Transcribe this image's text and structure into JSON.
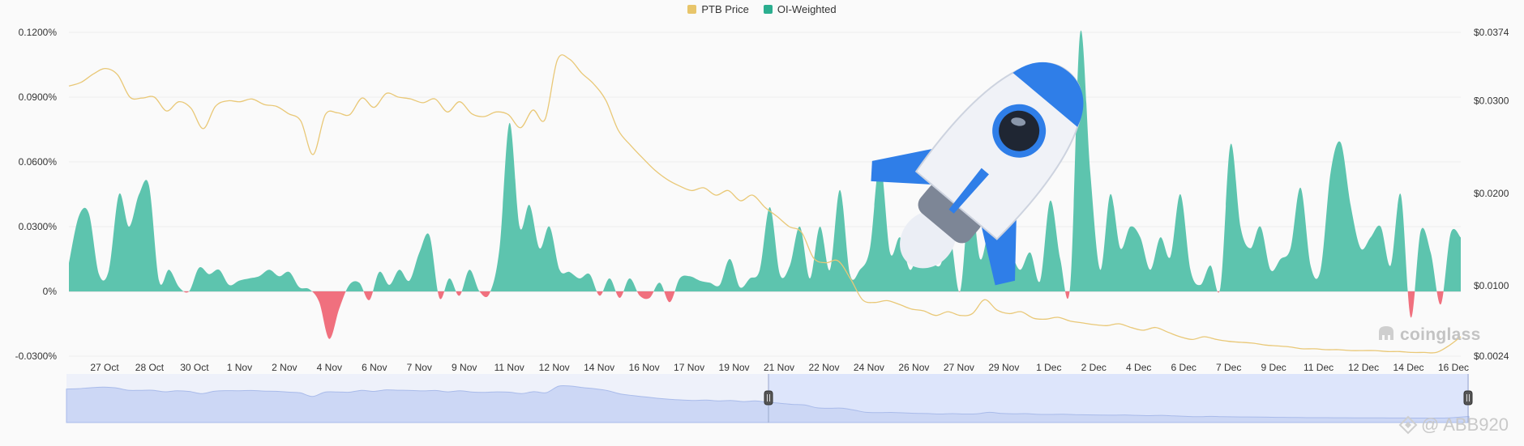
{
  "legend": {
    "items": [
      {
        "label": "PTB Price",
        "color": "#E8C56A"
      },
      {
        "label": "OI-Weighted",
        "color": "#2BAE8F"
      }
    ]
  },
  "watermark": {
    "brand": "coinglass",
    "author": "@ ABB920"
  },
  "colors": {
    "positive": "#5DC4AE",
    "negative": "#F0707E",
    "price": "#E9C877",
    "navigator_fill": "#CCD7F5",
    "navigator_line": "#A9BBEA"
  },
  "chart_data": {
    "type": "area",
    "left_axis": {
      "ticks": [
        "0.1200%",
        "0.0900%",
        "0.0600%",
        "0.0300%",
        "0%",
        "-0.0300%"
      ],
      "values": [
        0.12,
        0.09,
        0.06,
        0.03,
        0,
        -0.03
      ],
      "range": [
        -0.03,
        0.12
      ]
    },
    "right_axis": {
      "ticks": [
        "$0.0374",
        "$0.0300",
        "$0.0200",
        "$0.0100",
        "$0.0024"
      ],
      "values": [
        0.0374,
        0.03,
        0.02,
        0.01,
        0.0024
      ],
      "range": [
        0.0024,
        0.0374
      ]
    },
    "x_labels": [
      "27 Oct",
      "28 Oct",
      "30 Oct",
      "1 Nov",
      "2 Nov",
      "4 Nov",
      "6 Nov",
      "7 Nov",
      "9 Nov",
      "11 Nov",
      "12 Nov",
      "14 Nov",
      "16 Nov",
      "17 Nov",
      "19 Nov",
      "21 Nov",
      "22 Nov",
      "24 Nov",
      "26 Nov",
      "27 Nov",
      "29 Nov",
      "1 Dec",
      "2 Dec",
      "4 Dec",
      "6 Dec",
      "7 Dec",
      "9 Dec",
      "11 Dec",
      "12 Dec",
      "14 Dec",
      "16 Dec"
    ],
    "series": [
      {
        "name": "OI-Weighted",
        "axis": "left",
        "values": [
          0.013,
          0.035,
          0.036,
          0.008,
          0.01,
          0.045,
          0.03,
          0.045,
          0.049,
          0.005,
          0.01,
          0.002,
          0,
          0.011,
          0.008,
          0.01,
          0.003,
          0.005,
          0.006,
          0.007,
          0.01,
          0.007,
          0.009,
          0.002,
          0.001,
          -0.005,
          -0.022,
          -0.008,
          0.003,
          0.004,
          -0.004,
          0.009,
          0.003,
          0.01,
          0.005,
          0.018,
          0.026,
          -0.003,
          0.006,
          -0.002,
          0.01,
          0,
          -0.001,
          0.02,
          0.078,
          0.03,
          0.04,
          0.02,
          0.03,
          0.01,
          0.009,
          0.006,
          0.008,
          -0.002,
          0.006,
          -0.003,
          0.006,
          -0.002,
          -0.003,
          0.004,
          -0.005,
          0.006,
          0.007,
          0.005,
          0.004,
          0.003,
          0.015,
          0.002,
          0.006,
          0.01,
          0.039,
          0.008,
          0.012,
          0.03,
          0.006,
          0.03,
          0.01,
          0.047,
          0.008,
          0.01,
          0.02,
          0.06,
          0.018,
          0.025,
          0.01,
          0.02,
          0.015,
          0.012,
          0.025,
          0,
          0.045,
          0.015,
          0.03,
          0.02,
          0.018,
          0.01,
          0.018,
          0.005,
          0.042,
          0.015,
          0.003,
          0.12,
          0.055,
          0.01,
          0.045,
          0.02,
          0.03,
          0.025,
          0.01,
          0.025,
          0.016,
          0.045,
          0.01,
          0.003,
          0.012,
          0.002,
          0.068,
          0.03,
          0.02,
          0.03,
          0.01,
          0.015,
          0.02,
          0.048,
          0.012,
          0.01,
          0.055,
          0.069,
          0.04,
          0.02,
          0.025,
          0.03,
          0.012,
          0.045,
          -0.012,
          0.028,
          0.018,
          -0.006,
          0.027,
          0.025
        ]
      },
      {
        "name": "PTB Price",
        "axis": "right",
        "values": [
          0.0316,
          0.032,
          0.0329,
          0.0335,
          0.0328,
          0.0304,
          0.0303,
          0.0304,
          0.0289,
          0.0299,
          0.0292,
          0.027,
          0.0294,
          0.03,
          0.0299,
          0.0302,
          0.0296,
          0.0294,
          0.0286,
          0.0278,
          0.0242,
          0.0285,
          0.0287,
          0.0285,
          0.0303,
          0.0293,
          0.0308,
          0.0304,
          0.0302,
          0.0298,
          0.0302,
          0.0288,
          0.0299,
          0.0286,
          0.0283,
          0.0288,
          0.0285,
          0.0271,
          0.029,
          0.028,
          0.0344,
          0.0345,
          0.033,
          0.0318,
          0.03,
          0.0268,
          0.0252,
          0.0238,
          0.0225,
          0.0215,
          0.0208,
          0.0203,
          0.0206,
          0.0198,
          0.0203,
          0.0192,
          0.0198,
          0.0185,
          0.0175,
          0.0164,
          0.0158,
          0.013,
          0.0125,
          0.0127,
          0.0108,
          0.0085,
          0.0082,
          0.0084,
          0.008,
          0.0075,
          0.0073,
          0.0068,
          0.0072,
          0.0068,
          0.007,
          0.0085,
          0.0074,
          0.007,
          0.0072,
          0.0065,
          0.0064,
          0.0066,
          0.0062,
          0.006,
          0.0058,
          0.0057,
          0.0059,
          0.0055,
          0.0052,
          0.0055,
          0.005,
          0.0045,
          0.0042,
          0.0045,
          0.0042,
          0.004,
          0.0039,
          0.0038,
          0.0036,
          0.0035,
          0.0034,
          0.0032,
          0.0032,
          0.0031,
          0.0031,
          0.003,
          0.003,
          0.003,
          0.0029,
          0.0029,
          0.0028,
          0.0028,
          0.0028,
          0.0035,
          0.0045
        ]
      }
    ],
    "grid": true,
    "legend_position": "top"
  }
}
